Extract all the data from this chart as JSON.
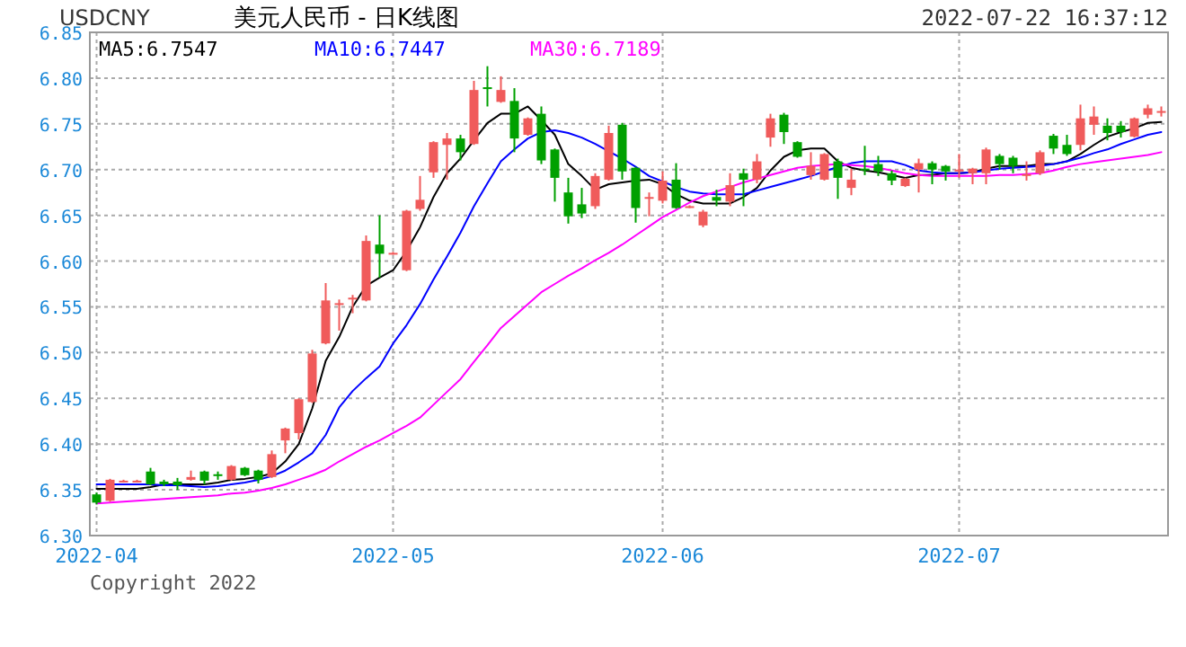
{
  "chart_data": {
    "type": "candlestick",
    "title": "美元人民币 - 日K线图",
    "subtitle": "USDCNY",
    "annotations": [
      "2022-07-22 16:37:12",
      "Copyright 2022"
    ],
    "categories": [
      "2022-04",
      null,
      null,
      null,
      null,
      null,
      null,
      null,
      null,
      null,
      null,
      null,
      null,
      null,
      null,
      null,
      null,
      null,
      null,
      null,
      null,
      null,
      "2022-05",
      null,
      null,
      null,
      null,
      null,
      null,
      null,
      null,
      null,
      null,
      null,
      null,
      null,
      null,
      null,
      null,
      null,
      null,
      null,
      "2022-06",
      null,
      null,
      null,
      null,
      null,
      null,
      null,
      null,
      null,
      null,
      null,
      null,
      null,
      null,
      null,
      null,
      null,
      null,
      null,
      null,
      null,
      "2022-07",
      null,
      null,
      null,
      null,
      null,
      null,
      null,
      null,
      null,
      null,
      null,
      null,
      null,
      null,
      null
    ],
    "ohlc": [
      [
        6.345,
        6.347,
        6.334,
        6.336
      ],
      [
        6.338,
        6.362,
        6.337,
        6.361
      ],
      [
        6.359,
        6.361,
        6.358,
        6.36
      ],
      [
        6.359,
        6.361,
        6.358,
        6.36
      ],
      [
        6.37,
        6.374,
        6.355,
        6.356
      ],
      [
        6.359,
        6.361,
        6.354,
        6.356
      ],
      [
        6.359,
        6.363,
        6.35,
        6.355
      ],
      [
        6.361,
        6.371,
        6.36,
        6.364
      ],
      [
        6.37,
        6.371,
        6.356,
        6.36
      ],
      [
        6.367,
        6.37,
        6.361,
        6.366
      ],
      [
        6.361,
        6.377,
        6.36,
        6.376
      ],
      [
        6.374,
        6.375,
        6.365,
        6.366
      ],
      [
        6.371,
        6.372,
        6.357,
        6.361
      ],
      [
        6.364,
        6.393,
        6.363,
        6.389
      ],
      [
        6.404,
        6.418,
        6.39,
        6.417
      ],
      [
        6.412,
        6.45,
        6.405,
        6.449
      ],
      [
        6.446,
        6.503,
        6.445,
        6.499
      ],
      [
        6.51,
        6.576,
        6.509,
        6.557
      ],
      [
        6.553,
        6.558,
        6.524,
        6.554
      ],
      [
        6.559,
        6.563,
        6.543,
        6.56
      ],
      [
        6.557,
        6.628,
        6.556,
        6.622
      ],
      [
        6.618,
        6.65,
        6.582,
        6.608
      ],
      [
        6.608,
        6.61,
        6.607,
        6.609
      ],
      [
        6.59,
        6.656,
        6.589,
        6.655
      ],
      [
        6.657,
        6.693,
        6.655,
        6.667
      ],
      [
        6.697,
        6.731,
        6.691,
        6.73
      ],
      [
        6.727,
        6.74,
        6.689,
        6.734
      ],
      [
        6.734,
        6.738,
        6.71,
        6.719
      ],
      [
        6.728,
        6.797,
        6.727,
        6.787
      ],
      [
        6.79,
        6.813,
        6.769,
        6.789
      ],
      [
        6.774,
        6.802,
        6.773,
        6.787
      ],
      [
        6.775,
        6.789,
        6.719,
        6.734
      ],
      [
        6.738,
        6.757,
        6.737,
        6.756
      ],
      [
        6.761,
        6.769,
        6.706,
        6.71
      ],
      [
        6.722,
        6.723,
        6.665,
        6.691
      ],
      [
        6.675,
        6.691,
        6.641,
        6.649
      ],
      [
        6.662,
        6.68,
        6.647,
        6.652
      ],
      [
        6.66,
        6.696,
        6.657,
        6.693
      ],
      [
        6.689,
        6.748,
        6.688,
        6.74
      ],
      [
        6.749,
        6.751,
        6.689,
        6.698
      ],
      [
        6.702,
        6.703,
        6.642,
        6.658
      ],
      [
        6.669,
        6.675,
        6.649,
        6.67
      ],
      [
        6.666,
        6.698,
        6.663,
        6.688
      ],
      [
        6.689,
        6.707,
        6.657,
        6.658
      ],
      [
        6.659,
        6.661,
        6.658,
        6.66
      ],
      [
        6.639,
        6.656,
        6.637,
        6.654
      ],
      [
        6.67,
        6.678,
        6.66,
        6.666
      ],
      [
        6.665,
        6.696,
        6.66,
        6.683
      ],
      [
        6.696,
        6.701,
        6.66,
        6.689
      ],
      [
        6.689,
        6.717,
        6.685,
        6.709
      ],
      [
        6.735,
        6.761,
        6.725,
        6.756
      ],
      [
        6.76,
        6.762,
        6.728,
        6.741
      ],
      [
        6.73,
        6.731,
        6.713,
        6.714
      ],
      [
        6.694,
        6.719,
        6.689,
        6.704
      ],
      [
        6.689,
        6.718,
        6.688,
        6.717
      ],
      [
        6.709,
        6.712,
        6.668,
        6.691
      ],
      [
        6.68,
        6.701,
        6.672,
        6.689
      ],
      [
        6.701,
        6.726,
        6.694,
        6.699
      ],
      [
        6.706,
        6.715,
        6.693,
        6.698
      ],
      [
        6.696,
        6.699,
        6.683,
        6.688
      ],
      [
        6.682,
        6.691,
        6.681,
        6.69
      ],
      [
        6.7,
        6.712,
        6.675,
        6.707
      ],
      [
        6.707,
        6.709,
        6.684,
        6.7
      ],
      [
        6.704,
        6.705,
        6.688,
        6.698
      ],
      [
        6.699,
        6.717,
        6.691,
        6.7
      ],
      [
        6.696,
        6.702,
        6.684,
        6.701
      ],
      [
        6.696,
        6.724,
        6.684,
        6.722
      ],
      [
        6.715,
        6.717,
        6.7,
        6.706
      ],
      [
        6.713,
        6.715,
        6.696,
        6.704
      ],
      [
        6.694,
        6.709,
        6.688,
        6.695
      ],
      [
        6.696,
        6.721,
        6.694,
        6.719
      ],
      [
        6.737,
        6.739,
        6.717,
        6.723
      ],
      [
        6.727,
        6.738,
        6.715,
        6.717
      ],
      [
        6.727,
        6.771,
        6.721,
        6.756
      ],
      [
        6.749,
        6.769,
        6.738,
        6.758
      ],
      [
        6.748,
        6.756,
        6.732,
        6.74
      ],
      [
        6.748,
        6.753,
        6.735,
        6.741
      ],
      [
        6.736,
        6.757,
        6.735,
        6.756
      ],
      [
        6.76,
        6.771,
        6.756,
        6.767
      ],
      [
        6.763,
        6.769,
        6.758,
        6.764
      ]
    ],
    "colors": [
      "#00a000",
      "#f05b5b",
      "#f05b5b",
      "#f05b5b",
      "#00a000",
      "#00a000",
      "#00a000",
      "#f05b5b",
      "#00a000",
      "#00a000",
      "#f05b5b",
      "#00a000",
      "#00a000",
      "#f05b5b",
      "#f05b5b",
      "#f05b5b",
      "#f05b5b",
      "#f05b5b",
      "#f05b5b",
      "#f05b5b",
      "#f05b5b",
      "#00a000",
      "#f05b5b",
      "#f05b5b",
      "#f05b5b",
      "#f05b5b",
      "#f05b5b",
      "#00a000",
      "#f05b5b",
      "#00a000",
      "#f05b5b",
      "#00a000",
      "#f05b5b",
      "#00a000",
      "#00a000",
      "#00a000",
      "#00a000",
      "#f05b5b",
      "#f05b5b",
      "#00a000",
      "#00a000",
      "#f05b5b",
      "#f05b5b",
      "#00a000",
      "#f05b5b",
      "#f05b5b",
      "#00a000",
      "#f05b5b",
      "#00a000",
      "#f05b5b",
      "#f05b5b",
      "#00a000",
      "#00a000",
      "#f05b5b",
      "#f05b5b",
      "#00a000",
      "#f05b5b",
      "#00a000",
      "#00a000",
      "#00a000",
      "#f05b5b",
      "#f05b5b",
      "#00a000",
      "#00a000",
      "#f05b5b",
      "#f05b5b",
      "#f05b5b",
      "#00a000",
      "#00a000",
      "#f05b5b",
      "#f05b5b",
      "#00a000",
      "#00a000",
      "#f05b5b",
      "#f05b5b",
      "#00a000",
      "#00a000",
      "#f05b5b",
      "#f05b5b",
      "#f05b5b"
    ],
    "series": [
      {
        "name": "MA5:6.7547",
        "type": "line",
        "color": "#000000",
        "values": [
          6.351,
          6.351,
          6.351,
          6.351,
          6.353,
          6.356,
          6.356,
          6.356,
          6.356,
          6.358,
          6.361,
          6.362,
          6.364,
          6.368,
          6.381,
          6.4,
          6.439,
          6.491,
          6.517,
          6.55,
          6.573,
          6.582,
          6.59,
          6.611,
          6.637,
          6.67,
          6.696,
          6.712,
          6.732,
          6.751,
          6.761,
          6.761,
          6.769,
          6.754,
          6.738,
          6.706,
          6.693,
          6.678,
          6.684,
          6.686,
          6.688,
          6.689,
          6.684,
          6.673,
          6.666,
          6.663,
          6.663,
          6.663,
          6.67,
          6.68,
          6.699,
          6.714,
          6.721,
          6.723,
          6.723,
          6.709,
          6.702,
          6.699,
          6.697,
          6.694,
          6.691,
          6.694,
          6.694,
          6.696,
          6.696,
          6.697,
          6.701,
          6.704,
          6.704,
          6.704,
          6.706,
          6.706,
          6.709,
          6.717,
          6.727,
          6.736,
          6.741,
          6.745,
          6.751,
          6.752
        ]
      },
      {
        "name": "MA10:6.7447",
        "type": "line",
        "color": "#0000ff",
        "values": [
          6.356,
          6.356,
          6.356,
          6.356,
          6.356,
          6.355,
          6.355,
          6.354,
          6.353,
          6.354,
          6.356,
          6.358,
          6.361,
          6.365,
          6.371,
          6.38,
          6.39,
          6.41,
          6.44,
          6.458,
          6.472,
          6.485,
          6.51,
          6.53,
          6.553,
          6.58,
          6.605,
          6.631,
          6.66,
          6.685,
          6.709,
          6.722,
          6.734,
          6.741,
          6.743,
          6.74,
          6.735,
          6.728,
          6.72,
          6.712,
          6.703,
          6.693,
          6.687,
          6.681,
          6.676,
          6.674,
          6.673,
          6.673,
          6.673,
          6.677,
          6.681,
          6.685,
          6.689,
          6.693,
          6.698,
          6.703,
          6.707,
          6.709,
          6.709,
          6.709,
          6.705,
          6.699,
          6.697,
          6.696,
          6.696,
          6.697,
          6.699,
          6.701,
          6.702,
          6.703,
          6.704,
          6.706,
          6.709,
          6.713,
          6.718,
          6.722,
          6.728,
          6.733,
          6.738,
          6.741
        ]
      },
      {
        "name": "MA30:6.7189",
        "type": "line",
        "color": "#ff00ff",
        "values": [
          6.335,
          6.336,
          6.337,
          6.338,
          6.339,
          6.34,
          6.341,
          6.342,
          6.343,
          6.344,
          6.346,
          6.347,
          6.349,
          6.352,
          6.356,
          6.361,
          6.366,
          6.372,
          6.381,
          6.389,
          6.397,
          6.404,
          6.412,
          6.42,
          6.429,
          6.443,
          6.457,
          6.471,
          6.49,
          6.508,
          6.527,
          6.54,
          6.553,
          6.566,
          6.575,
          6.584,
          6.592,
          6.601,
          6.609,
          6.618,
          6.628,
          6.638,
          6.648,
          6.656,
          6.664,
          6.671,
          6.676,
          6.681,
          6.686,
          6.69,
          6.694,
          6.698,
          6.702,
          6.704,
          6.705,
          6.706,
          6.705,
          6.704,
          6.702,
          6.699,
          6.696,
          6.694,
          6.693,
          6.693,
          6.693,
          6.693,
          6.693,
          6.694,
          6.694,
          6.695,
          6.696,
          6.699,
          6.703,
          6.706,
          6.708,
          6.71,
          6.712,
          6.714,
          6.716,
          6.719
        ]
      }
    ],
    "ylim": [
      6.3,
      6.85
    ],
    "yticks": [
      {
        "value": 6.3,
        "label": "6.30"
      },
      6.35,
      {
        "value": 6.4,
        "label": "6.40"
      },
      6.45,
      {
        "value": 6.5,
        "label": "6.50"
      },
      6.55,
      {
        "value": 6.6,
        "label": "6.60"
      },
      6.65,
      {
        "value": 6.7,
        "label": "6.70"
      },
      6.75,
      {
        "value": 6.8,
        "label": "6.80"
      },
      6.85
    ],
    "grid": true,
    "legend": "top left",
    "line_style": "solid"
  }
}
